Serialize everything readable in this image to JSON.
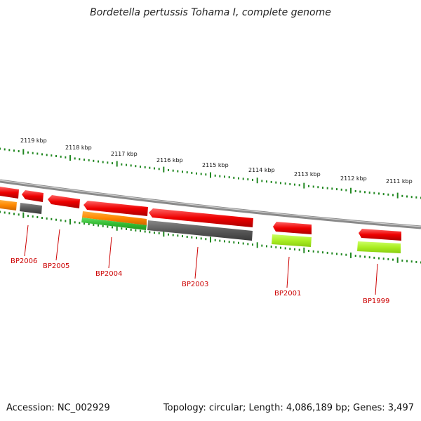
{
  "title": "Bordetella pertussis Tohama I, complete genome",
  "footer": {
    "accession": "Accession: NC_002929",
    "summary": "Topology: circular; Length: 4,086,189 bp; Genes: 3,497"
  },
  "kbp_labels": [
    "2119 kbp",
    "2118 kbp",
    "2117 kbp",
    "2116 kbp",
    "2115 kbp",
    "2114 kbp",
    "2113 kbp",
    "2112 kbp",
    "2111 kbp"
  ],
  "gene_labels": [
    "BP2006",
    "BP2005",
    "BP2004",
    "BP2003",
    "BP2001",
    "BP1999"
  ],
  "colors": {
    "forward_gene": "#ff0000",
    "cog_gray": "#606060",
    "cog_orange": "#ff8c00",
    "cog_green": "#33cc33",
    "cog_lime": "#aaee22",
    "label_red": "#cc0000",
    "tick_green": "#228822",
    "backbone": "#888888"
  }
}
